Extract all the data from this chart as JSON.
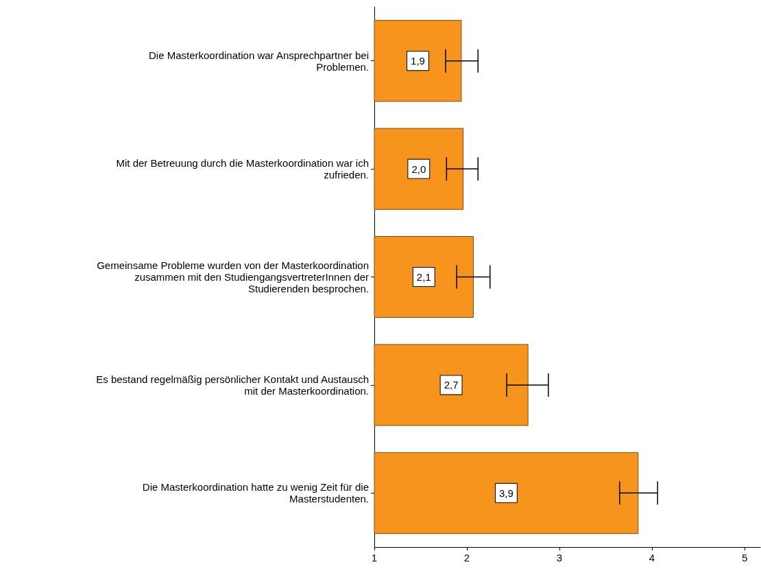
{
  "chart_data": {
    "type": "bar",
    "orientation": "horizontal",
    "categories": [
      "Die Masterkoordination war Ansprechpartner bei\nProblemen.",
      "Mit der Betreuung durch die Masterkoordination war ich\nzufrieden.",
      "Gemeinsame Probleme wurden von der Masterkoordination\nzusammen mit den StudiengangsvertreterInnen der\nStudierenden besprochen.",
      "Es bestand regelmäßig persönlicher Kontakt und Austausch\nmit der Masterkoordination.",
      "Die Masterkoordination hatte zu wenig Zeit für die\nMasterstudenten."
    ],
    "values": [
      1.94,
      1.96,
      2.07,
      2.66,
      3.85
    ],
    "value_labels": [
      "1,9",
      "2,0",
      "2,1",
      "2,7",
      "3,9"
    ],
    "errors": [
      [
        1.77,
        2.12
      ],
      [
        1.78,
        2.12
      ],
      [
        1.89,
        2.25
      ],
      [
        2.43,
        2.88
      ],
      [
        3.65,
        4.06
      ]
    ],
    "color": "#f7941d",
    "xlim": [
      1,
      5.17
    ],
    "xticks": [
      1,
      2,
      3,
      4,
      5
    ],
    "grid": false
  }
}
